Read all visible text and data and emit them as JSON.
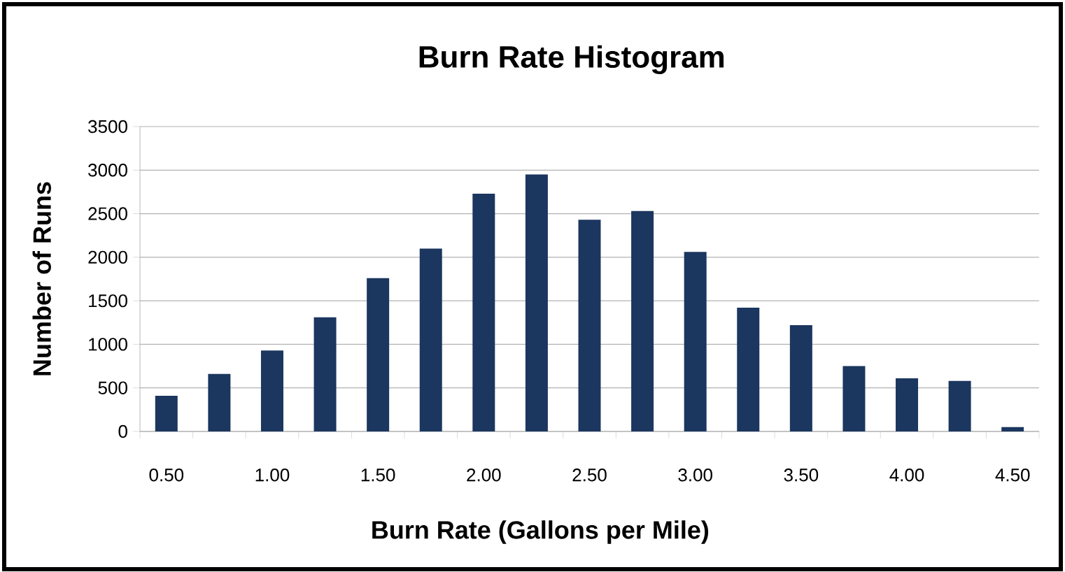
{
  "chart_data": {
    "type": "bar",
    "title": "Burn Rate Histogram",
    "xlabel": "Burn Rate (Gallons per Mile)",
    "ylabel": "Number of Runs",
    "categories": [
      "0.50",
      null,
      "1.00",
      null,
      "1.50",
      null,
      "2.00",
      null,
      "2.50",
      null,
      "3.00",
      null,
      "3.50",
      null,
      "4.00",
      null,
      "4.50"
    ],
    "values": [
      410,
      660,
      930,
      1310,
      1760,
      2100,
      2730,
      2950,
      2430,
      2530,
      2060,
      1420,
      1220,
      750,
      610,
      580,
      50
    ],
    "color": "#1b365f",
    "ylim": [
      0,
      3500
    ],
    "yticks": [
      0,
      500,
      1000,
      1500,
      2000,
      2500,
      3000,
      3500
    ],
    "grid": "y"
  }
}
